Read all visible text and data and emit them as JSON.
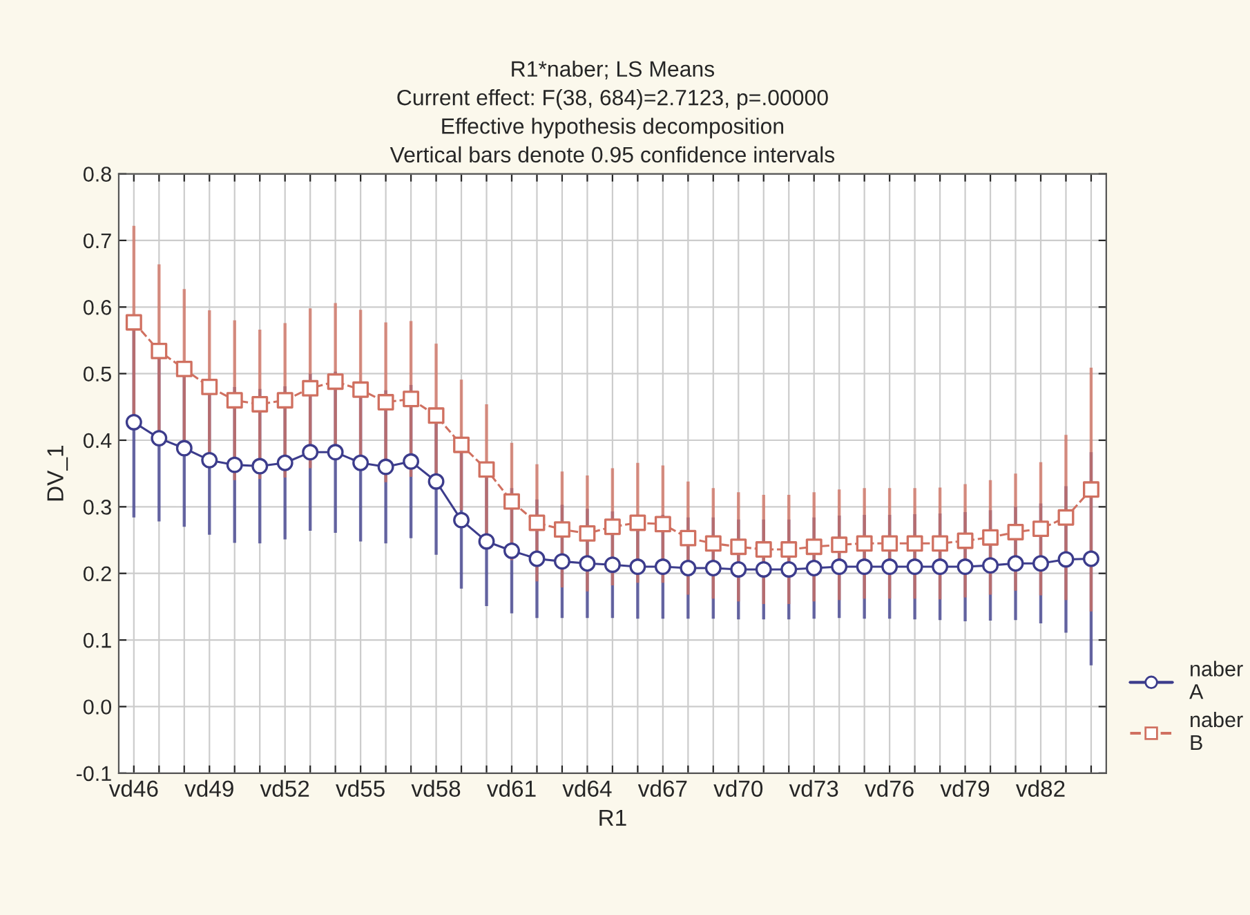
{
  "chart_data": {
    "type": "line",
    "title": "R1*naber; LS Means\nCurrent effect: F(38, 684)=2.7123, p=.00000\nEffective hypothesis decomposition\nVertical bars denote 0.95 confidence intervals",
    "xlabel": "R1",
    "ylabel": "DV_1",
    "categories": [
      "vd46",
      null,
      null,
      "vd49",
      null,
      null,
      "vd52",
      null,
      null,
      "vd55",
      null,
      null,
      "vd58",
      null,
      null,
      "vd61",
      null,
      null,
      "vd64",
      null,
      null,
      "vd67",
      null,
      null,
      "vd70",
      null,
      null,
      "vd73",
      null,
      null,
      "vd76",
      null,
      null,
      "vd79",
      null,
      null,
      "vd82",
      null,
      null
    ],
    "series": [
      {
        "name": "naber A",
        "color": "#3c3c8c",
        "marker": "circle",
        "line_style": "solid",
        "values": [
          0.427,
          0.403,
          0.388,
          0.37,
          0.363,
          0.361,
          0.366,
          0.382,
          0.382,
          0.366,
          0.36,
          0.368,
          0.338,
          0.28,
          0.248,
          0.234,
          0.222,
          0.218,
          0.215,
          0.213,
          0.21,
          0.21,
          0.208,
          0.208,
          0.206,
          0.206,
          0.206,
          0.208,
          0.21,
          0.21,
          0.21,
          0.21,
          0.21,
          0.21,
          0.212,
          0.215,
          0.215,
          0.221,
          0.222
        ],
        "errors": [
          0.143,
          0.125,
          0.118,
          0.112,
          0.117,
          0.116,
          0.115,
          0.118,
          0.121,
          0.118,
          0.115,
          0.115,
          0.11,
          0.103,
          0.097,
          0.094,
          0.089,
          0.085,
          0.082,
          0.08,
          0.078,
          0.078,
          0.076,
          0.076,
          0.075,
          0.075,
          0.075,
          0.076,
          0.077,
          0.078,
          0.078,
          0.079,
          0.08,
          0.082,
          0.083,
          0.085,
          0.09,
          0.11,
          0.16
        ]
      },
      {
        "name": "naber B",
        "color": "#d07060",
        "marker": "square",
        "line_style": "dashed",
        "values": [
          0.577,
          0.534,
          0.507,
          0.48,
          0.46,
          0.454,
          0.46,
          0.478,
          0.488,
          0.476,
          0.457,
          0.462,
          0.437,
          0.393,
          0.356,
          0.308,
          0.276,
          0.266,
          0.26,
          0.27,
          0.276,
          0.274,
          0.253,
          0.245,
          0.24,
          0.236,
          0.236,
          0.24,
          0.243,
          0.245,
          0.245,
          0.245,
          0.245,
          0.249,
          0.254,
          0.262,
          0.267,
          0.284,
          0.326
        ],
        "errors": [
          0.145,
          0.13,
          0.12,
          0.115,
          0.12,
          0.112,
          0.116,
          0.12,
          0.118,
          0.12,
          0.12,
          0.117,
          0.108,
          0.098,
          0.098,
          0.088,
          0.088,
          0.087,
          0.087,
          0.088,
          0.09,
          0.088,
          0.085,
          0.083,
          0.082,
          0.082,
          0.082,
          0.082,
          0.083,
          0.083,
          0.083,
          0.083,
          0.084,
          0.085,
          0.086,
          0.088,
          0.1,
          0.124,
          0.183
        ]
      }
    ],
    "ylim": [
      -0.1,
      0.8
    ],
    "yticks": [
      -0.1,
      {
        "value": 0,
        "label": "0.0"
      },
      0.1,
      0.2,
      0.3,
      0.4,
      0.5,
      0.6,
      0.7,
      0.8
    ],
    "grid": true,
    "legend": "bottom right"
  }
}
